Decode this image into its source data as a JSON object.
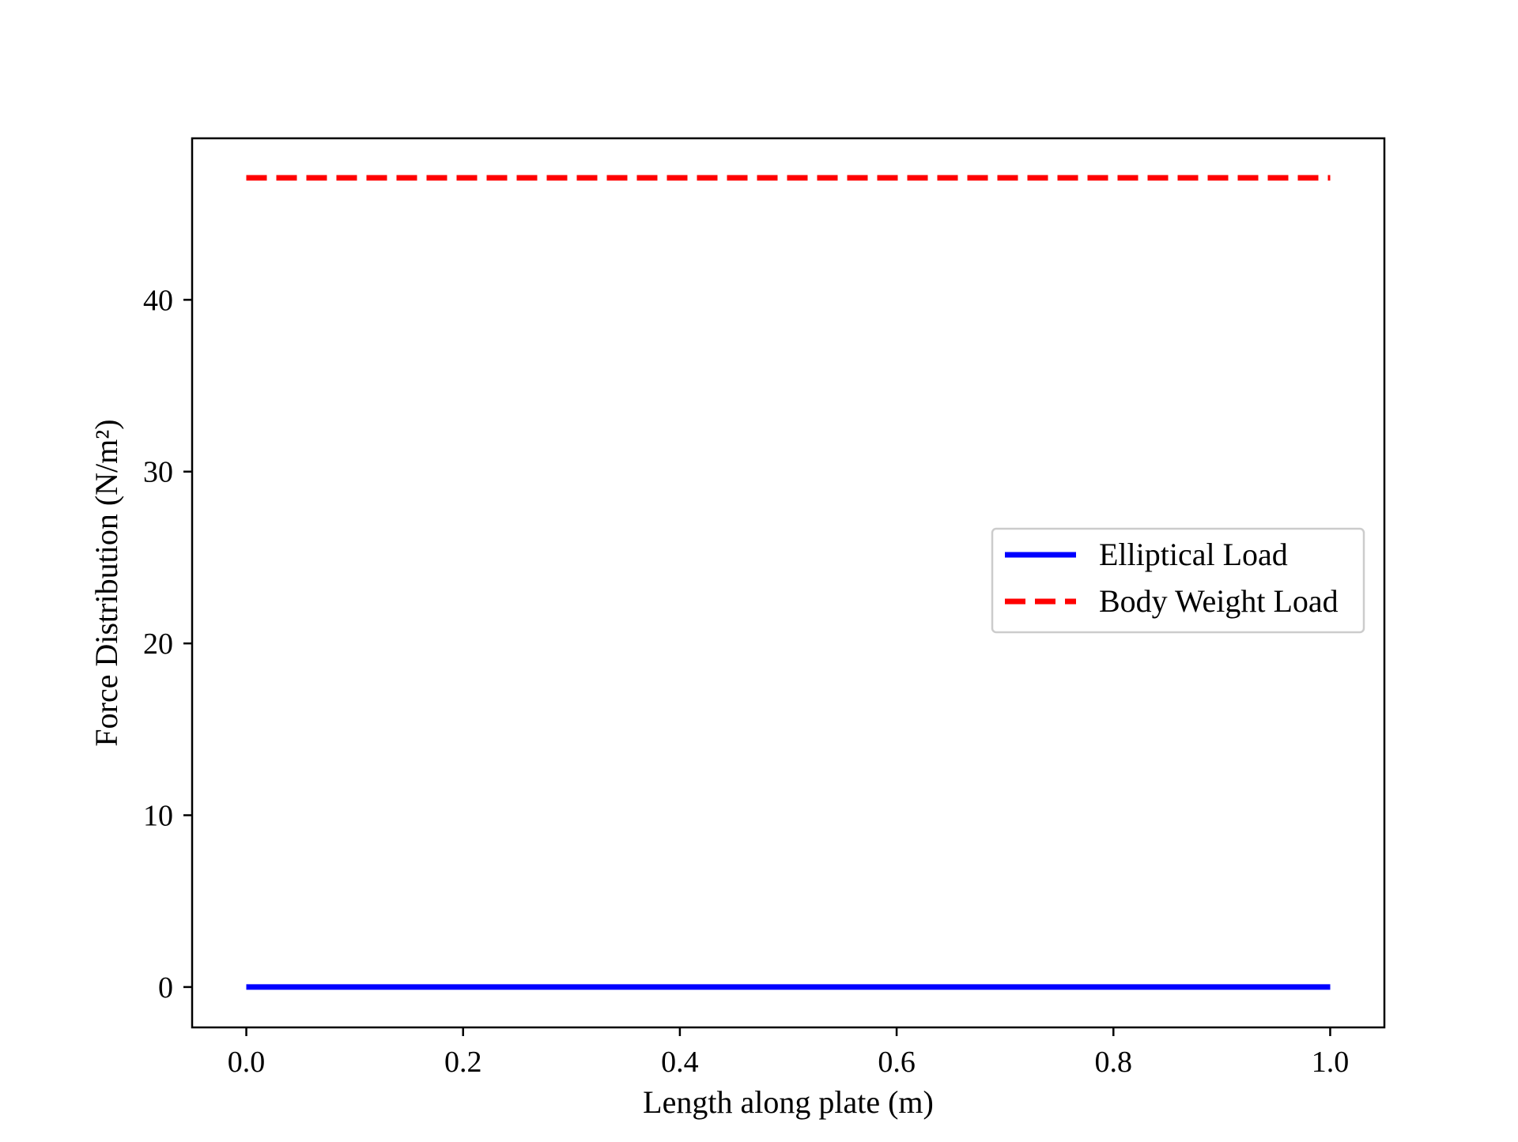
{
  "chart_data": {
    "type": "line",
    "title": "",
    "xlabel": "Length along plate (m)",
    "ylabel": "Force Distribution (N/m²)",
    "xlim": [
      -0.05,
      1.05
    ],
    "ylim": [
      -2.35,
      49.4
    ],
    "x_ticks": [
      0.0,
      0.2,
      0.4,
      0.6,
      0.8,
      1.0
    ],
    "x_tick_labels": [
      "0.0",
      "0.2",
      "0.4",
      "0.6",
      "0.8",
      "1.0"
    ],
    "y_ticks": [
      0,
      10,
      20,
      30,
      40
    ],
    "y_tick_labels": [
      "0",
      "10",
      "20",
      "30",
      "40"
    ],
    "grid": false,
    "legend_position": "center-right",
    "series": [
      {
        "name": "Elliptical Load",
        "color": "#0000ff",
        "line_style": "solid",
        "x": [
          0.0,
          0.2,
          0.4,
          0.6,
          0.8,
          1.0
        ],
        "y": [
          0,
          0,
          0,
          0,
          0,
          0
        ]
      },
      {
        "name": "Body Weight Load",
        "color": "#ff0000",
        "line_style": "dashed",
        "x": [
          0.0,
          0.2,
          0.4,
          0.6,
          0.8,
          1.0
        ],
        "y": [
          47.1,
          47.1,
          47.1,
          47.1,
          47.1,
          47.1
        ]
      }
    ]
  }
}
